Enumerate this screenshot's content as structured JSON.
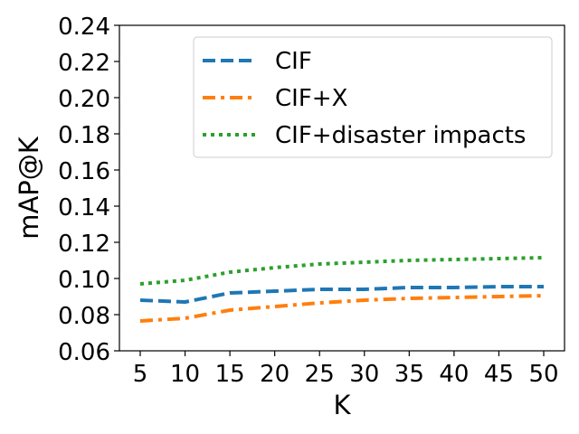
{
  "chart_data": {
    "type": "line",
    "title": "",
    "xlabel": "K",
    "ylabel": "mAP@K",
    "x": [
      5,
      10,
      15,
      20,
      25,
      30,
      35,
      40,
      45,
      50
    ],
    "xticks": [
      "5",
      "10",
      "15",
      "20",
      "25",
      "30",
      "35",
      "40",
      "45",
      "50"
    ],
    "yticks": [
      "0.06",
      "0.08",
      "0.10",
      "0.12",
      "0.14",
      "0.16",
      "0.18",
      "0.20",
      "0.22",
      "0.24"
    ],
    "ylim": [
      0.06,
      0.24
    ],
    "grid": false,
    "legend_position": "top-right",
    "series": [
      {
        "name": "CIF",
        "color": "#1f77b4",
        "style": "dashed",
        "values": [
          0.088,
          0.087,
          0.092,
          0.093,
          0.094,
          0.094,
          0.095,
          0.095,
          0.0955,
          0.0955
        ]
      },
      {
        "name": "CIF+X",
        "color": "#ff7f0e",
        "style": "dashdot",
        "values": [
          0.0765,
          0.078,
          0.0825,
          0.0845,
          0.0865,
          0.088,
          0.089,
          0.0895,
          0.09,
          0.0905
        ]
      },
      {
        "name": "CIF+disaster impacts",
        "color": "#2ca02c",
        "style": "dotted",
        "values": [
          0.097,
          0.099,
          0.1035,
          0.106,
          0.108,
          0.109,
          0.11,
          0.1105,
          0.111,
          0.1115
        ]
      }
    ]
  }
}
